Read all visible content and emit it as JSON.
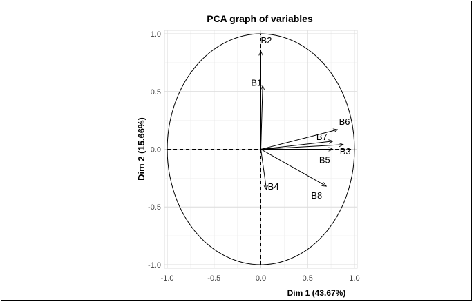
{
  "chart_data": {
    "type": "scatter",
    "title": "PCA graph of variables",
    "xlabel": "Dim 1 (43.67%)",
    "ylabel": "Dim 2 (15.66%)",
    "xlim": [
      -1.0,
      1.0
    ],
    "ylim": [
      -1.0,
      1.0
    ],
    "x_ticks": [
      "-1.0",
      "-0.5",
      "0.0",
      "0.5",
      "1.0"
    ],
    "y_ticks": [
      "-1.0",
      "-0.5",
      "0.0",
      "0.5",
      "1.0"
    ],
    "grid": true,
    "correlation_circle": true,
    "variables": [
      {
        "name": "B1",
        "label": "B1",
        "x": 0.02,
        "y": 0.55
      },
      {
        "name": "B2",
        "label": "B2",
        "x": 0.0,
        "y": 0.85
      },
      {
        "name": "B3",
        "label": "B3",
        "x": 0.88,
        "y": 0.04
      },
      {
        "name": "B4",
        "label": "B4",
        "x": 0.06,
        "y": -0.35
      },
      {
        "name": "B5",
        "label": "B5",
        "x": 0.77,
        "y": 0.0
      },
      {
        "name": "B6",
        "label": "B6",
        "x": 0.82,
        "y": 0.17
      },
      {
        "name": "B7",
        "label": "B7",
        "x": 0.77,
        "y": 0.07
      },
      {
        "name": "B8",
        "label": "B8",
        "x": 0.7,
        "y": -0.32
      }
    ],
    "colors": {
      "arrow": "#000000",
      "grid": "#dcdcdc",
      "axis_line": "#000000"
    }
  }
}
